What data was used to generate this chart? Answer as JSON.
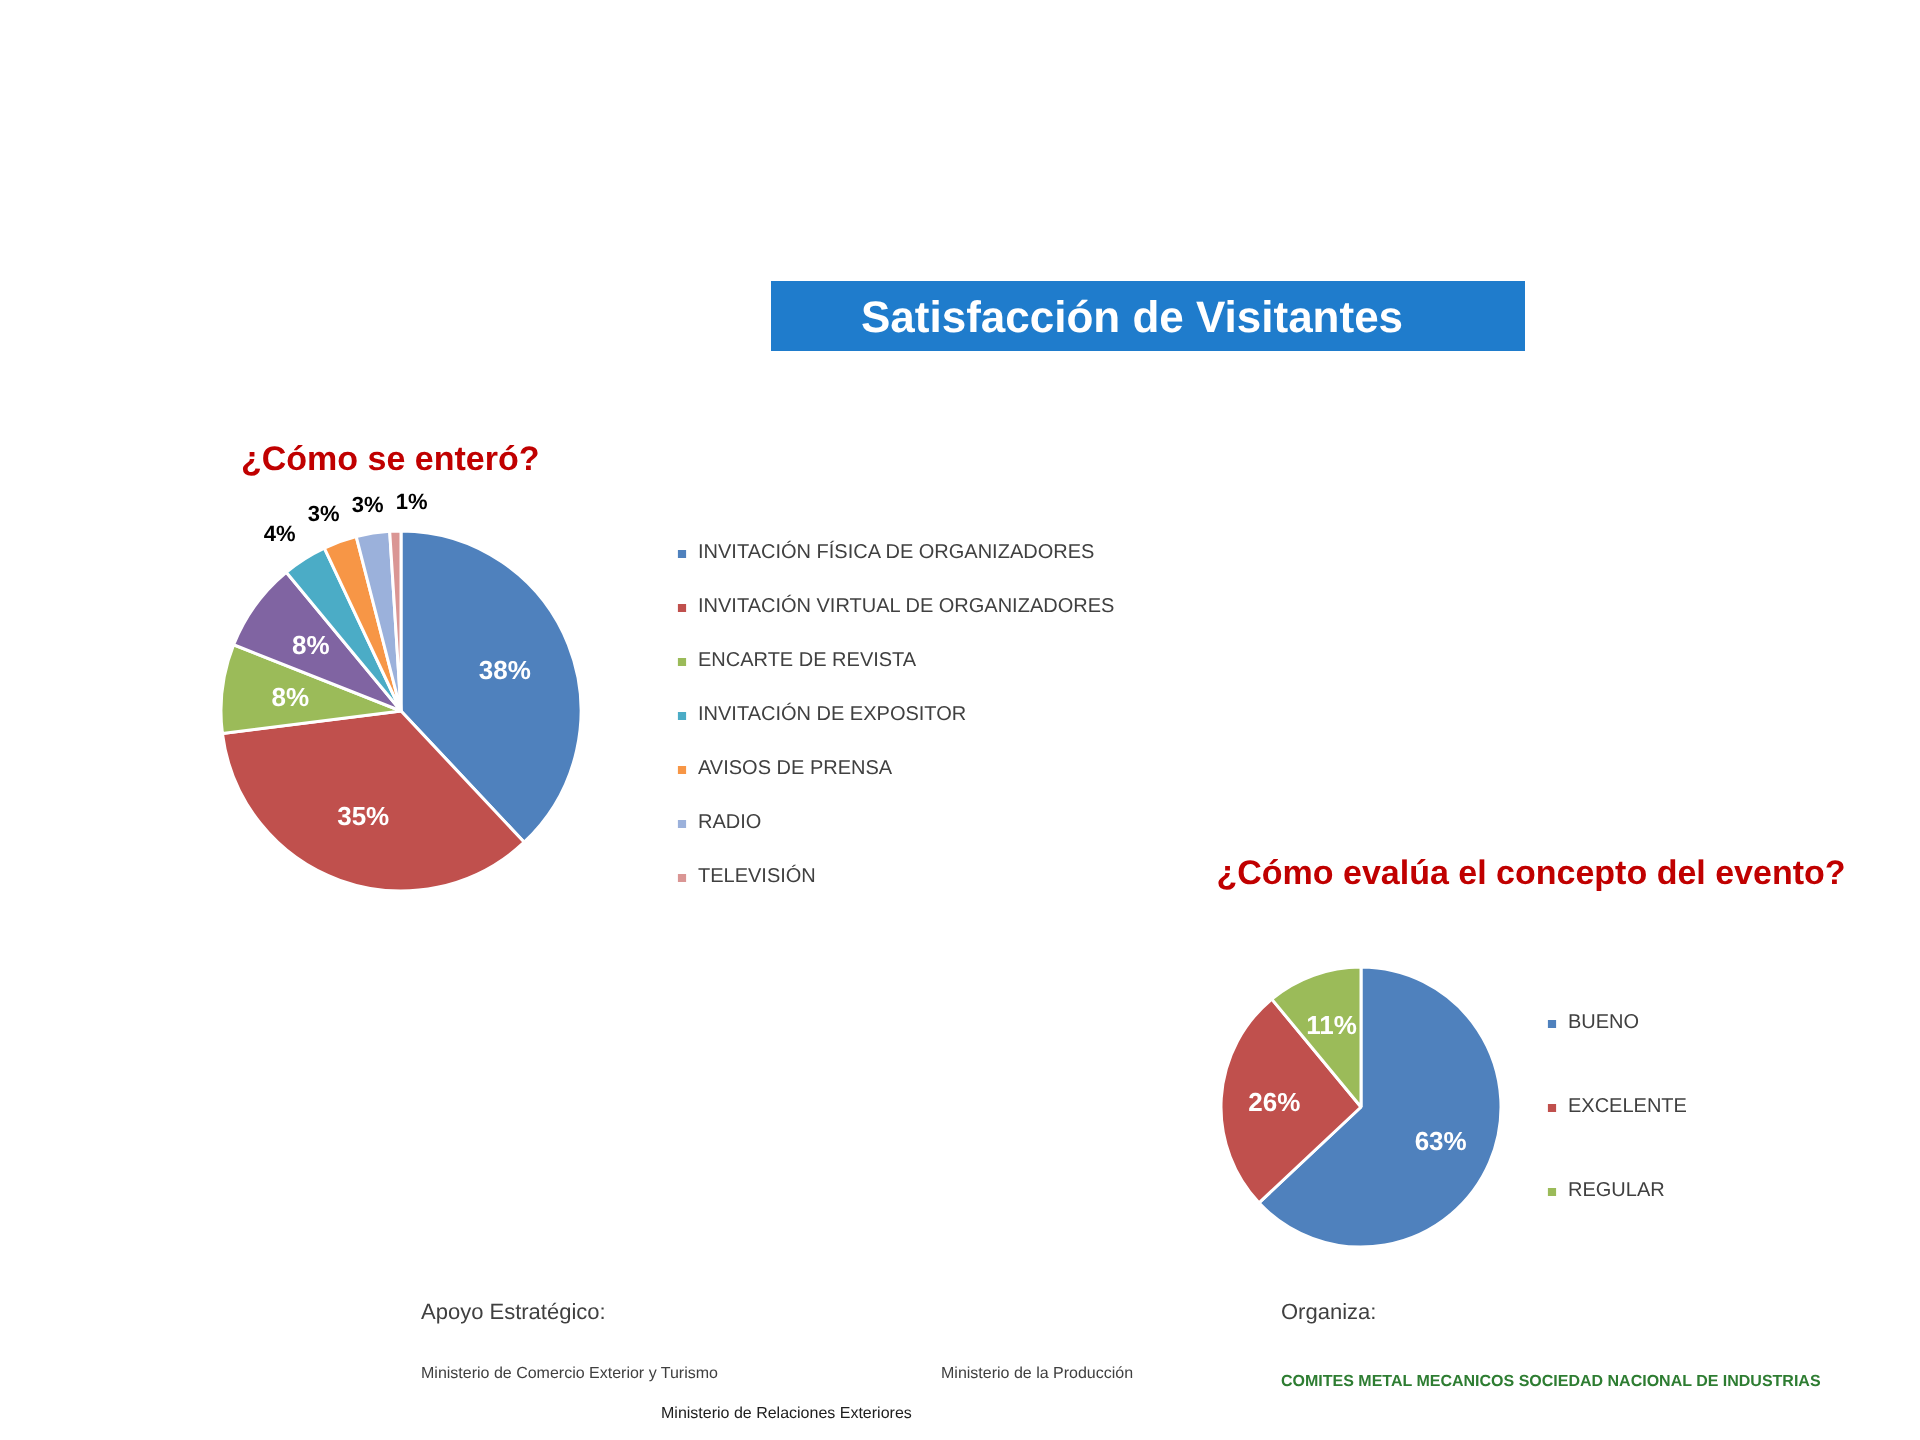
{
  "chart_data": [
    {
      "type": "pie",
      "title": "¿Cómo se enteró?",
      "categories": [
        "INVITACIÓN FÍSICA DE ORGANIZADORES",
        "INVITACIÓN VIRTUAL DE ORGANIZADORES",
        "ENCARTE DE REVISTA",
        null,
        "INVITACIÓN DE EXPOSITOR",
        "AVISOS DE PRENSA",
        "RADIO",
        "TELEVISIÓN"
      ],
      "values": [
        38,
        35,
        8,
        8,
        4,
        3,
        3,
        1
      ],
      "value_labels": [
        "38%",
        "35%",
        "8%",
        "8%",
        "4%",
        "3%",
        "3%",
        "1%"
      ],
      "colors": [
        "#4f81bd",
        "#c0504d",
        "#9bbb59",
        "#8064a2",
        "#4bacc6",
        "#f79646",
        "#9bb1db",
        "#da9694"
      ],
      "legend": "right",
      "annotations": [
        "Satisfacción de Visitantes"
      ]
    },
    {
      "type": "pie",
      "title": "¿Cómo evalúa el concepto del evento?",
      "categories": [
        "BUENO",
        "EXCELENTE",
        "REGULAR"
      ],
      "values": [
        63,
        26,
        11
      ],
      "value_labels": [
        "63%",
        "26%",
        "11%"
      ],
      "colors": [
        "#4f81bd",
        "#c0504d",
        "#9bbb59"
      ],
      "legend": "right",
      "annotations": [
        "Apoyo Estratégico:",
        "Ministerio de Comercio Exterior y Turismo",
        "Ministerio de Relaciones Exteriores",
        "Ministerio de la Producción",
        "Organiza:",
        "COMITES METAL MECANICOS SOCIEDAD NACIONAL DE INDUSTRIAS"
      ]
    }
  ]
}
